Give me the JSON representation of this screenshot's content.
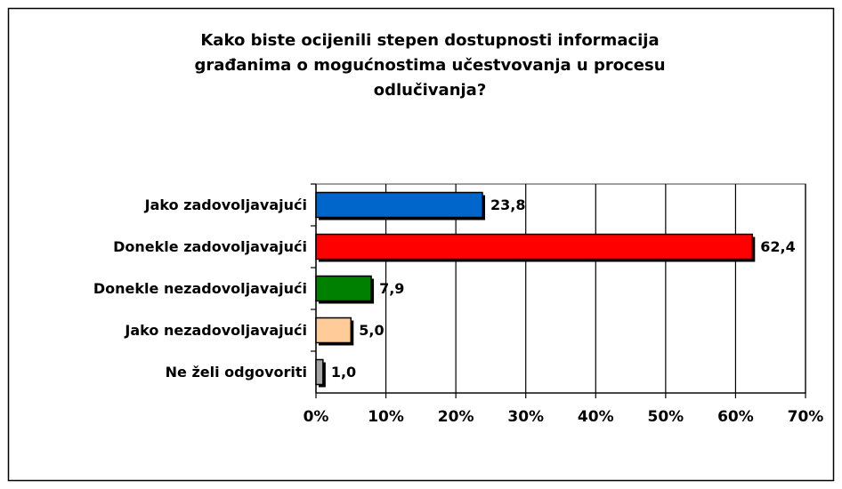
{
  "chart_data": {
    "type": "bar",
    "orientation": "horizontal",
    "title": [
      "Kako biste ocijenili stepen dostupnosti informacija",
      "građanima o mogućnostima učestvovanja u procesu",
      "odlučivanja?"
    ],
    "categories": [
      "Jako zadovoljavajući",
      "Donekle zadovoljavajući",
      "Donekle nezadovoljavajući",
      "Jako nezadovoljavajući",
      "Ne želi odgovoriti"
    ],
    "values": [
      23.8,
      62.4,
      7.9,
      5.0,
      1.0
    ],
    "value_labels": [
      "23,8",
      "62,4",
      "7,9",
      "5,0",
      "1,0"
    ],
    "colors": [
      "#0066cc",
      "#ff0000",
      "#008000",
      "#ffcc99",
      "#a6a6a6"
    ],
    "xlim": [
      0,
      70
    ],
    "xticks": [
      {
        "value": 0,
        "label": "0%"
      },
      {
        "value": 10,
        "label": "10%"
      },
      {
        "value": 20,
        "label": "20%"
      },
      {
        "value": 30,
        "label": "30%"
      },
      {
        "value": 40,
        "label": "40%"
      },
      {
        "value": 50,
        "label": "50%"
      },
      {
        "value": 60,
        "label": "60%"
      },
      {
        "value": 70,
        "label": "70%"
      }
    ],
    "grid": true
  }
}
